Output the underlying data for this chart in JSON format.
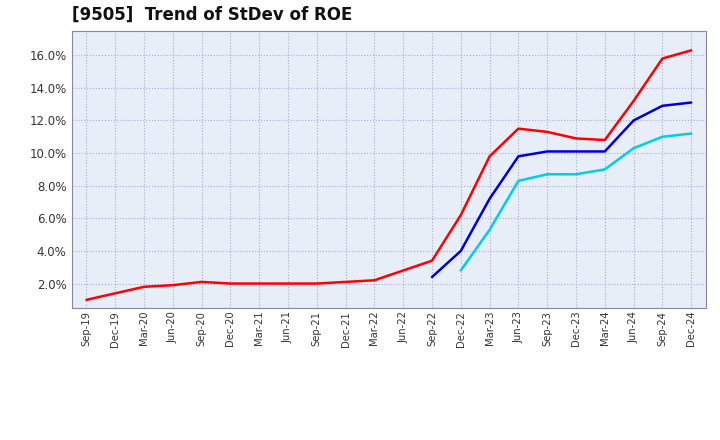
{
  "title": "[9505]  Trend of StDev of ROE",
  "title_fontsize": 12,
  "background_color": "#ffffff",
  "plot_bg_color": "#e8eef8",
  "grid_color": "#aaaacc",
  "ylim": [
    0.005,
    0.175
  ],
  "yticks": [
    0.02,
    0.04,
    0.06,
    0.08,
    0.1,
    0.12,
    0.14,
    0.16
  ],
  "xtick_labels": [
    "Sep-19",
    "Dec-19",
    "Mar-20",
    "Jun-20",
    "Sep-20",
    "Dec-20",
    "Mar-21",
    "Jun-21",
    "Sep-21",
    "Dec-21",
    "Mar-22",
    "Jun-22",
    "Sep-22",
    "Dec-22",
    "Mar-23",
    "Jun-23",
    "Sep-23",
    "Dec-23",
    "Mar-24",
    "Jun-24",
    "Sep-24",
    "Dec-24"
  ],
  "series": {
    "3 Years": {
      "color": "#ff0000",
      "linewidth": 1.8,
      "values": [
        0.01,
        0.014,
        0.018,
        0.019,
        0.021,
        0.02,
        0.02,
        0.02,
        0.02,
        0.021,
        0.022,
        0.028,
        0.034,
        0.062,
        0.098,
        0.115,
        0.113,
        0.109,
        0.108,
        0.132,
        0.158,
        0.163
      ]
    },
    "5 Years": {
      "color": "#0000dd",
      "linewidth": 1.8,
      "values": [
        null,
        null,
        null,
        null,
        null,
        null,
        null,
        null,
        null,
        null,
        null,
        null,
        0.024,
        0.04,
        0.072,
        0.098,
        0.101,
        0.101,
        0.101,
        0.12,
        0.129,
        0.131
      ]
    },
    "7 Years": {
      "color": "#00ccee",
      "linewidth": 1.8,
      "values": [
        null,
        null,
        null,
        null,
        null,
        null,
        null,
        null,
        null,
        null,
        null,
        null,
        null,
        0.028,
        0.053,
        0.083,
        0.087,
        0.087,
        0.09,
        0.103,
        0.11,
        0.112
      ]
    },
    "10 Years": {
      "color": "#007700",
      "linewidth": 1.8,
      "values": [
        null,
        null,
        null,
        null,
        null,
        null,
        null,
        null,
        null,
        null,
        null,
        null,
        null,
        null,
        null,
        null,
        null,
        null,
        null,
        null,
        null,
        null
      ]
    }
  }
}
